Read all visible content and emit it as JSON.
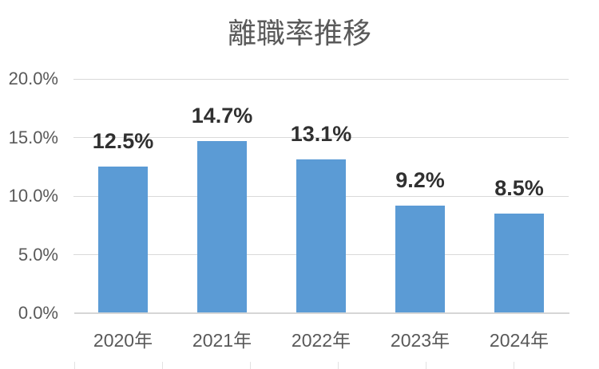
{
  "chart_data": {
    "type": "bar",
    "title": "離職率推移",
    "categories": [
      "2020年",
      "2021年",
      "2022年",
      "2023年",
      "2024年"
    ],
    "values": [
      12.5,
      14.7,
      13.1,
      9.2,
      8.5
    ],
    "data_labels": [
      "12.5%",
      "14.7%",
      "13.1%",
      "9.2%",
      "8.5%"
    ],
    "ytick_values": [
      0,
      5,
      10,
      15,
      20
    ],
    "ytick_labels": [
      "0.0%",
      "5.0%",
      "10.0%",
      "15.0%",
      "20.0%"
    ],
    "ylim": [
      0,
      20
    ],
    "xlabel": "",
    "ylabel": "",
    "grid": true,
    "legend": false,
    "colors": {
      "bar": "#5B9BD5",
      "gridline": "#D9D9D9",
      "axis_line": "#D6D6D6",
      "title_text": "#595959",
      "axis_text": "#595959",
      "data_label_text": "#303030",
      "background": "#FFFFFF",
      "background_stub": "#E2E2E2"
    }
  }
}
